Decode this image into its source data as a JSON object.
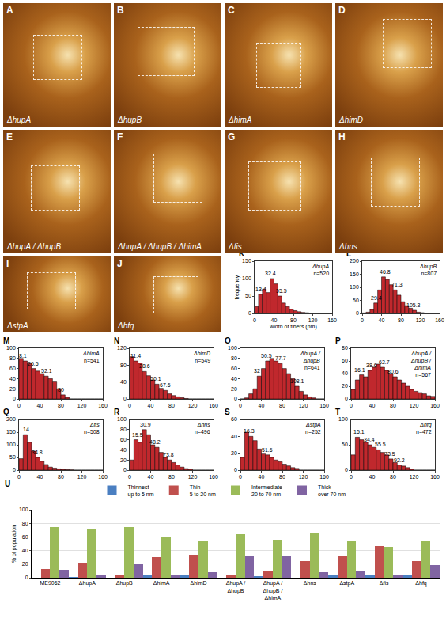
{
  "images": [
    {
      "letter": "A",
      "label": "ΔhupA"
    },
    {
      "letter": "B",
      "label": "ΔhupB"
    },
    {
      "letter": "C",
      "label": "ΔhimA"
    },
    {
      "letter": "D",
      "label": "ΔhimD"
    },
    {
      "letter": "E",
      "label": "ΔhupA / ΔhupB"
    },
    {
      "letter": "F",
      "label": "ΔhupA / ΔhupB / ΔhimA"
    },
    {
      "letter": "G",
      "label": "Δfis"
    },
    {
      "letter": "H",
      "label": "Δhns"
    },
    {
      "letter": "I",
      "label": "ΔstpA"
    },
    {
      "letter": "J",
      "label": "Δhfq"
    }
  ],
  "chart_data": [
    {
      "type": "histogram",
      "letter": "K",
      "title": "ΔhupA",
      "n_label": "n=520",
      "x_label": "width of fibers (nm)",
      "y_label": "frequency",
      "color": "#c0282d",
      "bins": [
        0,
        8,
        16,
        24,
        32,
        40,
        48,
        56,
        64,
        72,
        80,
        88,
        96,
        104,
        112,
        120,
        128,
        136,
        144,
        152,
        160
      ],
      "values": [
        20,
        55,
        70,
        60,
        100,
        85,
        50,
        30,
        20,
        12,
        8,
        5,
        3,
        2,
        0,
        0,
        0,
        0,
        0,
        0
      ],
      "peaks": [
        13.4,
        32.4,
        55.5
      ],
      "xlim": [
        0,
        160
      ],
      "xticks": [
        0,
        40,
        80,
        120,
        160
      ],
      "ylim": [
        0,
        150
      ],
      "yticks": [
        0,
        50,
        100,
        150
      ]
    },
    {
      "type": "histogram",
      "letter": "L",
      "title": "ΔhupB",
      "n_label": "n=807",
      "color": "#c0282d",
      "bins": [
        0,
        8,
        16,
        24,
        32,
        40,
        48,
        56,
        64,
        72,
        80,
        88,
        96,
        104,
        112,
        120,
        128,
        136,
        144,
        152,
        160
      ],
      "values": [
        2,
        5,
        15,
        40,
        90,
        140,
        130,
        110,
        90,
        70,
        45,
        30,
        20,
        12,
        5,
        3,
        0,
        0,
        0,
        0
      ],
      "peaks": [
        29.4,
        46.8,
        71.3,
        105.3
      ],
      "xlim": [
        0,
        160
      ],
      "xticks": [
        0,
        40,
        80,
        120,
        160
      ],
      "ylim": [
        0,
        200
      ],
      "yticks": [
        0,
        50,
        100,
        150,
        200
      ]
    },
    {
      "type": "histogram",
      "letter": "M",
      "title": "ΔhimA",
      "n_label": "n=541",
      "color": "#c0282d",
      "bins": [
        0,
        8,
        16,
        24,
        32,
        40,
        48,
        56,
        64,
        72,
        80,
        88,
        96,
        104,
        112,
        120,
        128,
        136,
        144,
        152,
        160
      ],
      "values": [
        80,
        75,
        70,
        60,
        55,
        50,
        45,
        40,
        35,
        20,
        8,
        3,
        0,
        0,
        0,
        0,
        0,
        0,
        0,
        0
      ],
      "peaks": [
        8.1,
        26.5,
        52.1,
        80.0
      ],
      "xlim": [
        0,
        160
      ],
      "xticks": [
        0,
        40,
        80,
        120,
        160
      ],
      "ylim": [
        0,
        100
      ],
      "yticks": [
        0,
        20,
        40,
        60,
        80,
        100
      ]
    },
    {
      "type": "histogram",
      "letter": "N",
      "title": "ΔhimD",
      "n_label": "n=549",
      "color": "#c0282d",
      "bins": [
        0,
        8,
        16,
        24,
        32,
        40,
        48,
        56,
        64,
        72,
        80,
        88,
        96,
        104,
        112,
        120,
        128,
        136,
        144,
        152,
        160
      ],
      "values": [
        100,
        90,
        85,
        65,
        55,
        45,
        35,
        25,
        20,
        12,
        8,
        5,
        3,
        1,
        0,
        0,
        0,
        0,
        0,
        0
      ],
      "peaks": [
        11.4,
        28.6,
        50.1,
        67.6
      ],
      "xlim": [
        0,
        160
      ],
      "xticks": [
        0,
        40,
        80,
        120,
        160
      ],
      "ylim": [
        0,
        120
      ],
      "yticks": [
        0,
        40,
        80,
        120
      ]
    },
    {
      "type": "histogram",
      "letter": "O",
      "title": "ΔhupA / ΔhupB",
      "n_label": "n=641",
      "color": "#c0282d",
      "bins": [
        0,
        8,
        16,
        24,
        32,
        40,
        48,
        56,
        64,
        72,
        80,
        88,
        96,
        104,
        112,
        120,
        128,
        136,
        144,
        152,
        160
      ],
      "values": [
        0,
        2,
        10,
        20,
        45,
        60,
        75,
        80,
        75,
        70,
        60,
        50,
        40,
        25,
        15,
        8,
        4,
        2,
        0,
        0
      ],
      "peaks": [
        32.0,
        50.5,
        77.7,
        108.1
      ],
      "xlim": [
        0,
        160
      ],
      "xticks": [
        0,
        40,
        80,
        120,
        160
      ],
      "ylim": [
        0,
        100
      ],
      "yticks": [
        0,
        20,
        40,
        60,
        80,
        100
      ]
    },
    {
      "type": "histogram",
      "letter": "P",
      "title": "ΔhupA / ΔhupB / ΔhimA",
      "n_label": "n=567",
      "color": "#c0282d",
      "bins": [
        0,
        8,
        16,
        24,
        32,
        40,
        48,
        56,
        64,
        72,
        80,
        88,
        96,
        104,
        112,
        120,
        128,
        136,
        144,
        152,
        160
      ],
      "values": [
        15,
        30,
        38,
        35,
        45,
        50,
        55,
        50,
        45,
        40,
        35,
        30,
        25,
        20,
        15,
        12,
        10,
        8,
        5,
        4
      ],
      "peaks": [
        16.1,
        38.6,
        62.7,
        80.6
      ],
      "xlim": [
        0,
        160
      ],
      "xticks": [
        0,
        40,
        80,
        120,
        160
      ],
      "ylim": [
        0,
        80
      ],
      "yticks": [
        0,
        20,
        40,
        60,
        80
      ]
    },
    {
      "type": "histogram",
      "letter": "Q",
      "title": "Δfis",
      "n_label": "n=508",
      "color": "#c0282d",
      "bins": [
        0,
        8,
        16,
        24,
        32,
        40,
        48,
        56,
        64,
        72,
        80,
        88,
        96,
        104,
        112,
        120,
        128,
        136,
        144,
        152,
        160
      ],
      "values": [
        45,
        140,
        110,
        75,
        50,
        35,
        22,
        12,
        8,
        5,
        3,
        2,
        1,
        0,
        0,
        0,
        0,
        0,
        0,
        0
      ],
      "peaks": [
        14.0,
        34.8
      ],
      "xlim": [
        0,
        160
      ],
      "xticks": [
        0,
        40,
        80,
        120,
        160
      ],
      "ylim": [
        0,
        200
      ],
      "yticks": [
        0,
        50,
        100,
        150,
        200
      ]
    },
    {
      "type": "histogram",
      "letter": "R",
      "title": "Δhns",
      "n_label": "n=496",
      "color": "#c0282d",
      "bins": [
        0,
        8,
        16,
        24,
        32,
        40,
        48,
        56,
        64,
        72,
        80,
        88,
        96,
        104,
        112,
        120,
        128,
        136,
        144,
        152,
        160
      ],
      "values": [
        20,
        60,
        55,
        80,
        70,
        50,
        45,
        35,
        25,
        20,
        15,
        10,
        6,
        3,
        2,
        0,
        0,
        0,
        0,
        0
      ],
      "peaks": [
        15.5,
        30.9,
        48.2,
        73.8
      ],
      "xlim": [
        0,
        160
      ],
      "xticks": [
        0,
        40,
        80,
        120,
        160
      ],
      "ylim": [
        0,
        100
      ],
      "yticks": [
        0,
        20,
        40,
        60,
        80,
        100
      ]
    },
    {
      "type": "histogram",
      "letter": "S",
      "title": "ΔstpA",
      "n_label": "n=252",
      "color": "#c0282d",
      "bins": [
        0,
        8,
        16,
        24,
        32,
        40,
        48,
        56,
        64,
        72,
        80,
        88,
        96,
        104,
        112,
        120,
        128,
        136,
        144,
        152,
        160
      ],
      "values": [
        15,
        45,
        40,
        35,
        25,
        20,
        18,
        15,
        12,
        10,
        7,
        5,
        3,
        2,
        0,
        0,
        0,
        0,
        0,
        0
      ],
      "peaks": [
        16.3,
        51.6
      ],
      "xlim": [
        0,
        160
      ],
      "xticks": [
        0,
        40,
        80,
        120,
        160
      ],
      "ylim": [
        0,
        60
      ],
      "yticks": [
        0,
        20,
        40,
        60
      ]
    },
    {
      "type": "histogram",
      "letter": "T",
      "title": "Δhfq",
      "n_label": "n=472",
      "color": "#c0282d",
      "bins": [
        0,
        8,
        16,
        24,
        32,
        40,
        48,
        56,
        64,
        72,
        80,
        88,
        96,
        104,
        112,
        120,
        128,
        136,
        144,
        152,
        160
      ],
      "values": [
        30,
        65,
        60,
        55,
        50,
        45,
        40,
        35,
        30,
        22,
        15,
        10,
        8,
        5,
        2,
        0,
        0,
        0,
        0,
        0
      ],
      "peaks": [
        15.1,
        34.4,
        55.5,
        73.5,
        92.2
      ],
      "xlim": [
        0,
        160
      ],
      "xticks": [
        0,
        40,
        80,
        120,
        160
      ],
      "ylim": [
        0,
        100
      ],
      "yticks": [
        0,
        50,
        100
      ]
    },
    {
      "type": "bar",
      "letter": "U",
      "y_label": "% of population",
      "legend": "top",
      "categories": [
        "ME9062",
        "ΔhupA",
        "ΔhupB",
        "ΔhimA",
        "ΔhimD",
        "ΔhupA / ΔhupB",
        "ΔhupA / ΔhupB / ΔhimA",
        "Δhns",
        "ΔstpA",
        "Δfis",
        "Δhfq"
      ],
      "series": [
        {
          "name": "Thinnest up to 5 nm",
          "color": "#4a7fc1",
          "values": [
            0,
            1,
            0,
            5,
            3,
            0,
            2,
            0,
            3,
            4,
            3
          ]
        },
        {
          "name": "Thin 5 to 20 nm",
          "color": "#c0504d",
          "values": [
            13,
            22,
            5,
            30,
            34,
            3,
            11,
            25,
            32,
            47,
            24
          ]
        },
        {
          "name": "Intermediate 20 to 70 nm",
          "color": "#9bbb59",
          "values": [
            74,
            72,
            75,
            60,
            55,
            64,
            56,
            65,
            54,
            45,
            53
          ]
        },
        {
          "name": "Thick over 70 nm",
          "color": "#8064a2",
          "values": [
            12,
            5,
            20,
            5,
            8,
            33,
            31,
            8,
            11,
            4,
            19
          ]
        }
      ],
      "ylim": [
        0,
        100
      ],
      "yticks": [
        0,
        20,
        40,
        60,
        80,
        100
      ]
    }
  ]
}
